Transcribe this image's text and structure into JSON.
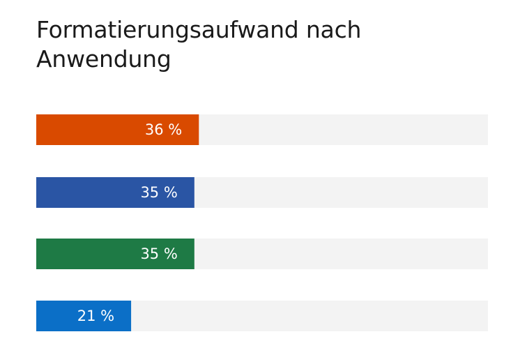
{
  "chart_data": {
    "type": "bar",
    "orientation": "horizontal",
    "title": "Formatierungsaufwand nach Anwendung",
    "categories": [
      "",
      "",
      "",
      ""
    ],
    "values": [
      36,
      35,
      35,
      21
    ],
    "value_labels": [
      "36 %",
      "35 %",
      "35 %",
      "21 %"
    ],
    "colors": [
      "#d94a00",
      "#2a55a4",
      "#1e7a45",
      "#0b6fc7"
    ],
    "track_color": "#f3f3f3",
    "xlim": [
      0,
      100
    ],
    "grid": false,
    "legend": "none"
  }
}
